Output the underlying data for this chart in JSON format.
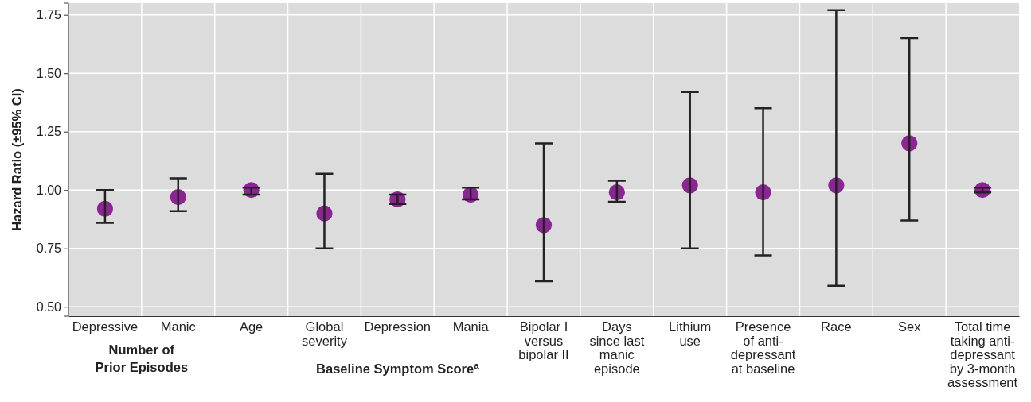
{
  "chart_data": {
    "type": "scatter",
    "ylabel": "Hazard Ratio (±95% CI)",
    "categories": [
      "Depressive",
      "Manic",
      "Age",
      "Global\nseverity",
      "Depression",
      "Mania",
      "Bipolar I\nversus\nbipolar II",
      "Days\nsince last\nmanic\nepisode",
      "Lithium\nuse",
      "Presence\nof anti-\ndepressant\nat  baseline",
      "Race",
      "Sex",
      "Total time\ntaking anti-\ndepressant\nby 3-month\nassessment"
    ],
    "series": [
      {
        "color": "#8b2591",
        "values": [
          0.92,
          0.97,
          1.0,
          0.9,
          0.96,
          0.98,
          0.85,
          0.99,
          1.02,
          0.99,
          1.02,
          1.2,
          1.0
        ],
        "errors": [
          [
            0.86,
            1.0
          ],
          [
            0.91,
            1.05
          ],
          [
            0.98,
            1.01
          ],
          [
            0.75,
            1.07
          ],
          [
            0.94,
            0.98
          ],
          [
            0.96,
            1.01
          ],
          [
            0.61,
            1.2
          ],
          [
            0.95,
            1.04
          ],
          [
            0.75,
            1.42
          ],
          [
            0.72,
            1.35
          ],
          [
            0.59,
            1.77
          ],
          [
            0.87,
            1.65
          ],
          [
            0.99,
            1.01
          ]
        ]
      }
    ],
    "ylim": [
      0.46,
      1.8
    ],
    "yticks": [
      {
        "value": 0.5,
        "label": "0.50"
      },
      {
        "value": 0.75,
        "label": "0.75"
      },
      {
        "value": 1,
        "label": "1.00"
      },
      {
        "value": 1.25,
        "label": "1.25"
      },
      {
        "value": 1.5,
        "label": "1.50"
      },
      {
        "value": 1.75,
        "label": "1.75"
      }
    ],
    "grid": true,
    "marker": "circle",
    "annotations": [
      "Number of\nPrior Episodes",
      "Baseline Symptom Score$^{a}$"
    ]
  }
}
